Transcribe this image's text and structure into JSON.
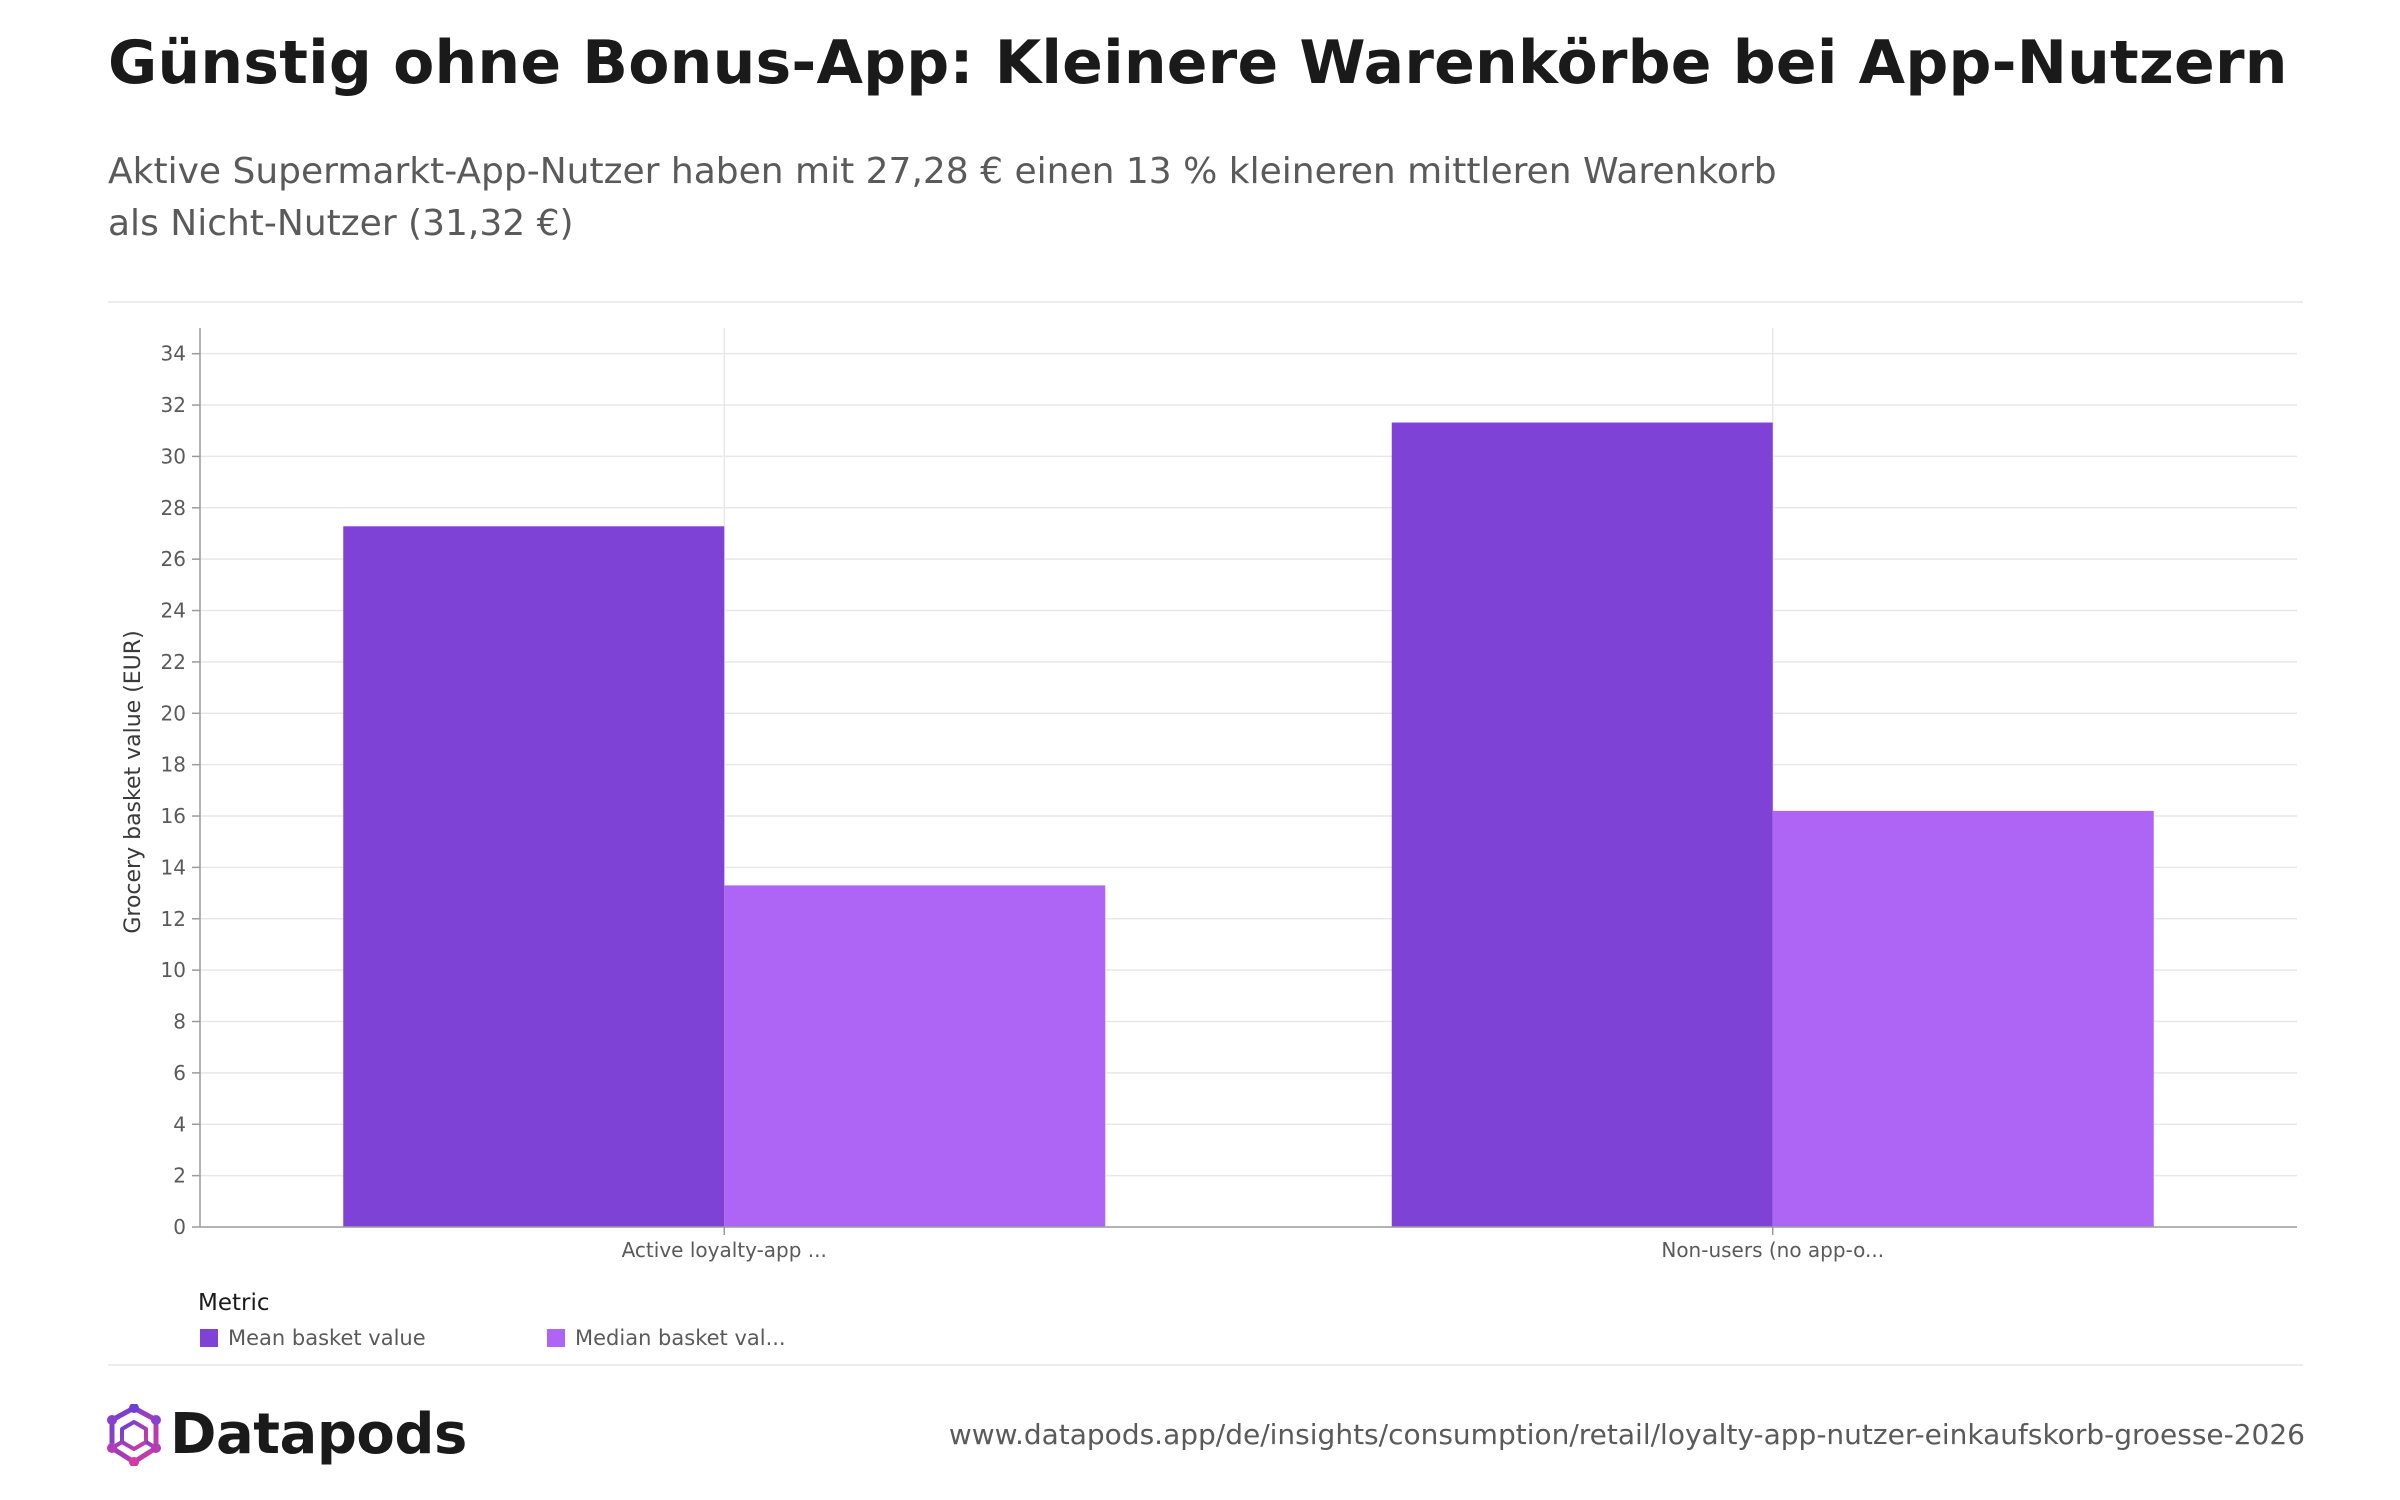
{
  "header": {
    "title": "Günstig ohne Bonus-App: Kleinere Warenkörbe bei App-Nutzern",
    "subtitle": "Aktive Supermarkt-App-Nutzer haben mit 27,28 € einen 13 % kleineren mittleren Warenkorb als Nicht-Nutzer (31,32 €)"
  },
  "chart_data": {
    "type": "bar",
    "categories": [
      "Active loyalty-app ...",
      "Non-users (no app-o..."
    ],
    "series": [
      {
        "name": "Mean basket value",
        "values": [
          27.28,
          31.32
        ],
        "color": "#7e43d6"
      },
      {
        "name": "Median basket val...",
        "values": [
          13.3,
          16.2
        ],
        "color": "#ae65f6"
      }
    ],
    "ylabel": "Grocery basket value (EUR)",
    "xlabel": "",
    "ylim": [
      0,
      35
    ],
    "yticks": [
      0,
      2,
      4,
      6,
      8,
      10,
      12,
      14,
      16,
      18,
      20,
      22,
      24,
      26,
      28,
      30,
      32,
      34
    ],
    "grid": true,
    "legend_title": "Metric",
    "legend_position": "bottom-left"
  },
  "footer": {
    "brand": "Datapods",
    "source_url": "www.datapods.app/de/insights/consumption/retail/loyalty-app-nutzer-einkaufskorb-groesse-2026"
  },
  "colors": {
    "mean": "#7e43d6",
    "median": "#ae65f6",
    "logo_gradient_start": "#6a3fd8",
    "logo_gradient_end": "#d63aa0"
  },
  "icons": {
    "logo": "datapods-logo-icon"
  }
}
